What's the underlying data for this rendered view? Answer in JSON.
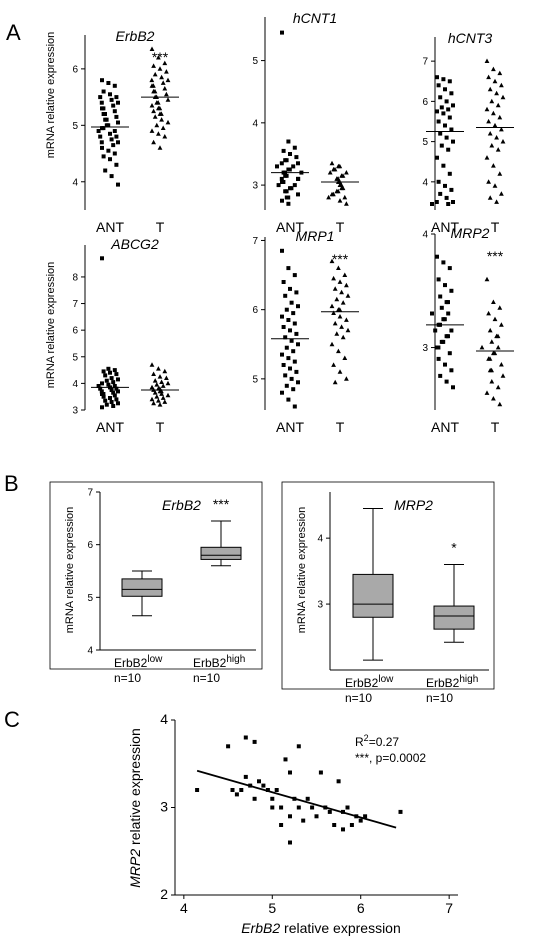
{
  "panel_letters": {
    "A": "A",
    "B": "B",
    "C": "C"
  },
  "labels": {
    "mrna_y": "mRNA relative expression",
    "c_ylabel_gene": "MRP2",
    "c_ylabel_rest": " relative expression",
    "c_xlabel_gene": "ErbB2",
    "c_xlabel_rest": " relative expression"
  },
  "chart_data": [
    {
      "type": "scatter",
      "panel": "A",
      "title": "ErbB2",
      "significance": "***",
      "categories": [
        "ANT",
        "T"
      ],
      "ylim": [
        3.5,
        6.6
      ],
      "yticks": [
        4,
        5,
        6
      ],
      "means": [
        4.97,
        5.5
      ],
      "groups": [
        {
          "category": "ANT",
          "marker": "square",
          "values": [
            5.8,
            5.75,
            5.7,
            5.6,
            5.55,
            5.5,
            5.5,
            5.45,
            5.4,
            5.4,
            5.35,
            5.3,
            5.3,
            5.25,
            5.2,
            5.2,
            5.15,
            5.1,
            5.1,
            5.05,
            5.0,
            5.0,
            4.95,
            4.95,
            4.9,
            4.9,
            4.85,
            4.8,
            4.8,
            4.75,
            4.7,
            4.7,
            4.65,
            4.6,
            4.55,
            4.5,
            4.45,
            4.4,
            4.3,
            4.2,
            4.1,
            3.95
          ]
        },
        {
          "category": "T",
          "marker": "triangle",
          "values": [
            6.35,
            6.2,
            6.1,
            6.05,
            6.0,
            5.95,
            5.9,
            5.85,
            5.8,
            5.8,
            5.75,
            5.7,
            5.7,
            5.65,
            5.6,
            5.6,
            5.55,
            5.5,
            5.5,
            5.45,
            5.4,
            5.4,
            5.35,
            5.3,
            5.3,
            5.25,
            5.2,
            5.2,
            5.15,
            5.1,
            5.05,
            5.0,
            4.95,
            4.9,
            4.85,
            4.8,
            4.7,
            4.6
          ]
        }
      ]
    },
    {
      "type": "scatter",
      "panel": "A",
      "title": "hCNT1",
      "significance": "",
      "categories": [
        "ANT",
        "T"
      ],
      "ylim": [
        2.6,
        5.7
      ],
      "yticks": [
        3,
        4,
        5
      ],
      "means": [
        3.2,
        3.05
      ],
      "groups": [
        {
          "category": "ANT",
          "marker": "square",
          "values": [
            5.45,
            3.7,
            3.6,
            3.55,
            3.5,
            3.45,
            3.4,
            3.4,
            3.35,
            3.35,
            3.3,
            3.3,
            3.25,
            3.25,
            3.2,
            3.2,
            3.2,
            3.15,
            3.15,
            3.1,
            3.1,
            3.1,
            3.05,
            3.05,
            3.0,
            3.0,
            2.95,
            2.95,
            2.9,
            2.9,
            2.85,
            2.8,
            2.8,
            2.75,
            2.7
          ]
        },
        {
          "category": "T",
          "marker": "triangle",
          "values": [
            3.35,
            3.3,
            3.3,
            3.25,
            3.25,
            3.2,
            3.2,
            3.15,
            3.15,
            3.1,
            3.1,
            3.1,
            3.05,
            3.05,
            3.05,
            3.0,
            3.0,
            3.0,
            2.95,
            2.95,
            2.9,
            2.9,
            2.85,
            2.85,
            2.8,
            2.8,
            2.75,
            2.7
          ]
        }
      ]
    },
    {
      "type": "scatter",
      "panel": "A",
      "title": "hCNT3",
      "significance": "",
      "categories": [
        "ANT",
        "T"
      ],
      "ylim": [
        3.3,
        7.6
      ],
      "yticks": [
        4,
        5,
        6,
        7
      ],
      "means": [
        5.25,
        5.35
      ],
      "groups": [
        {
          "category": "ANT",
          "marker": "square",
          "values": [
            6.6,
            6.55,
            6.5,
            6.4,
            6.3,
            6.2,
            6.1,
            6.0,
            5.9,
            5.85,
            5.8,
            5.75,
            5.7,
            5.6,
            5.5,
            5.4,
            5.3,
            5.2,
            5.1,
            5.0,
            4.9,
            4.8,
            4.6,
            4.4,
            4.2,
            4.0,
            3.9,
            3.8,
            3.7,
            3.6,
            3.5,
            3.5,
            3.45,
            3.45
          ]
        },
        {
          "category": "T",
          "marker": "triangle",
          "values": [
            7.0,
            6.8,
            6.7,
            6.6,
            6.5,
            6.4,
            6.3,
            6.2,
            6.1,
            6.0,
            5.9,
            5.8,
            5.7,
            5.6,
            5.5,
            5.4,
            5.3,
            5.2,
            5.1,
            5.0,
            4.9,
            4.8,
            4.6,
            4.4,
            4.2,
            4.0,
            3.9,
            3.7,
            3.6,
            3.5
          ]
        }
      ]
    },
    {
      "type": "scatter",
      "panel": "A",
      "title": "ABCG2",
      "significance": "",
      "categories": [
        "ANT",
        "T"
      ],
      "ylim": [
        3.0,
        9.2
      ],
      "yticks": [
        3,
        4,
        5,
        6,
        7,
        8
      ],
      "means": [
        3.85,
        3.75
      ],
      "groups": [
        {
          "category": "ANT",
          "marker": "square",
          "values": [
            8.7,
            4.55,
            4.5,
            4.45,
            4.4,
            4.35,
            4.3,
            4.2,
            4.15,
            4.1,
            4.05,
            4.0,
            3.95,
            3.9,
            3.9,
            3.85,
            3.8,
            3.8,
            3.75,
            3.7,
            3.7,
            3.65,
            3.6,
            3.6,
            3.55,
            3.5,
            3.45,
            3.4,
            3.35,
            3.3,
            3.25,
            3.2,
            3.15,
            3.1
          ]
        },
        {
          "category": "T",
          "marker": "triangle",
          "values": [
            4.7,
            4.55,
            4.45,
            4.35,
            4.25,
            4.2,
            4.1,
            4.05,
            4.0,
            3.95,
            3.9,
            3.85,
            3.8,
            3.8,
            3.75,
            3.7,
            3.7,
            3.65,
            3.6,
            3.55,
            3.5,
            3.45,
            3.4,
            3.35,
            3.3,
            3.25,
            3.2
          ]
        }
      ]
    },
    {
      "type": "scatter",
      "panel": "A",
      "title": "MRP1",
      "significance": "***",
      "categories": [
        "ANT",
        "T"
      ],
      "ylim": [
        4.55,
        7.05
      ],
      "yticks": [
        5,
        6,
        7
      ],
      "means": [
        5.58,
        5.97
      ],
      "groups": [
        {
          "category": "ANT",
          "marker": "square",
          "values": [
            6.85,
            6.6,
            6.5,
            6.4,
            6.3,
            6.25,
            6.2,
            6.1,
            6.05,
            6.0,
            5.95,
            5.9,
            5.85,
            5.8,
            5.75,
            5.7,
            5.65,
            5.6,
            5.55,
            5.5,
            5.45,
            5.4,
            5.35,
            5.3,
            5.25,
            5.2,
            5.15,
            5.1,
            5.05,
            5.0,
            4.95,
            4.9,
            4.85,
            4.8,
            4.7,
            4.6
          ]
        },
        {
          "category": "T",
          "marker": "triangle",
          "values": [
            6.7,
            6.6,
            6.5,
            6.45,
            6.4,
            6.35,
            6.3,
            6.25,
            6.2,
            6.15,
            6.1,
            6.05,
            6.0,
            6.0,
            5.95,
            5.9,
            5.85,
            5.8,
            5.75,
            5.7,
            5.65,
            5.6,
            5.5,
            5.4,
            5.3,
            5.2,
            5.1,
            5.0,
            4.95
          ]
        }
      ]
    },
    {
      "type": "scatter",
      "panel": "A",
      "title": "MRP2",
      "significance": "***",
      "categories": [
        "ANT",
        "T"
      ],
      "ylim": [
        2.45,
        4.0
      ],
      "yticks": [
        3,
        4
      ],
      "means": [
        3.2,
        2.97
      ],
      "groups": [
        {
          "category": "ANT",
          "marker": "square",
          "values": [
            3.8,
            3.75,
            3.7,
            3.6,
            3.55,
            3.5,
            3.45,
            3.4,
            3.4,
            3.35,
            3.3,
            3.3,
            3.25,
            3.25,
            3.2,
            3.2,
            3.15,
            3.15,
            3.1,
            3.1,
            3.05,
            3.05,
            3.0,
            3.0,
            2.95,
            2.9,
            2.85,
            2.8,
            2.75,
            2.7,
            2.65
          ]
        },
        {
          "category": "T",
          "marker": "triangle",
          "values": [
            3.6,
            3.4,
            3.35,
            3.3,
            3.25,
            3.2,
            3.15,
            3.1,
            3.1,
            3.05,
            3.0,
            3.0,
            2.95,
            2.95,
            2.9,
            2.9,
            2.85,
            2.8,
            2.8,
            2.75,
            2.7,
            2.65,
            2.6,
            2.55,
            2.5
          ]
        }
      ]
    },
    {
      "type": "box",
      "panel": "B",
      "title": "ErbB2",
      "significance": "***",
      "ylim": [
        4,
        7
      ],
      "yticks": [
        4,
        5,
        6,
        7
      ],
      "boxes": [
        {
          "label": "ErbB2",
          "sup": "low",
          "n": "n=10",
          "min": 4.65,
          "q1": 5.02,
          "median": 5.15,
          "q3": 5.35,
          "max": 5.5
        },
        {
          "label": "ErbB2",
          "sup": "high",
          "n": "n=10",
          "min": 5.6,
          "q1": 5.72,
          "median": 5.8,
          "q3": 5.95,
          "max": 6.45
        }
      ]
    },
    {
      "type": "box",
      "panel": "B",
      "title": "MRP2",
      "significance": "*",
      "ylim": [
        2,
        4.7
      ],
      "yticks": [
        3,
        4
      ],
      "boxes": [
        {
          "label": "ErbB2",
          "sup": "low",
          "n": "n=10",
          "min": 2.15,
          "q1": 2.8,
          "median": 3.0,
          "q3": 3.45,
          "max": 4.45
        },
        {
          "label": "ErbB2",
          "sup": "high",
          "n": "n=10",
          "min": 2.42,
          "q1": 2.62,
          "median": 2.82,
          "q3": 2.97,
          "max": 3.6
        }
      ]
    },
    {
      "type": "scatter",
      "panel": "C",
      "xlim": [
        3.9,
        7.1
      ],
      "ylim": [
        2,
        4
      ],
      "xticks": [
        4,
        5,
        6,
        7
      ],
      "yticks": [
        2,
        3,
        4
      ],
      "annotation_r2_base": "R",
      "annotation_r2_sup": "2",
      "annotation_r2_val": "=0.27",
      "annotation_p": "***, p=0.0002",
      "regression": {
        "x": [
          4.15,
          6.4
        ],
        "y": [
          3.42,
          2.77
        ]
      },
      "points": [
        [
          4.15,
          3.2
        ],
        [
          4.5,
          3.7
        ],
        [
          4.55,
          3.2
        ],
        [
          4.6,
          3.15
        ],
        [
          4.65,
          3.2
        ],
        [
          4.7,
          3.8
        ],
        [
          4.75,
          3.25
        ],
        [
          4.7,
          3.35
        ],
        [
          4.8,
          3.75
        ],
        [
          4.8,
          3.1
        ],
        [
          4.85,
          3.3
        ],
        [
          4.9,
          3.25
        ],
        [
          4.95,
          3.2
        ],
        [
          5.0,
          3.1
        ],
        [
          5.0,
          3.0
        ],
        [
          5.05,
          3.2
        ],
        [
          5.1,
          3.0
        ],
        [
          5.1,
          2.8
        ],
        [
          5.15,
          3.55
        ],
        [
          5.2,
          3.4
        ],
        [
          5.2,
          2.9
        ],
        [
          5.2,
          2.6
        ],
        [
          5.25,
          3.1
        ],
        [
          5.3,
          3.7
        ],
        [
          5.3,
          3.0
        ],
        [
          5.35,
          2.85
        ],
        [
          5.4,
          3.1
        ],
        [
          5.45,
          3.0
        ],
        [
          5.5,
          2.9
        ],
        [
          5.55,
          3.4
        ],
        [
          5.6,
          3.0
        ],
        [
          5.65,
          2.95
        ],
        [
          5.7,
          2.8
        ],
        [
          5.75,
          3.3
        ],
        [
          5.8,
          2.95
        ],
        [
          5.8,
          2.75
        ],
        [
          5.85,
          3.0
        ],
        [
          5.9,
          2.8
        ],
        [
          5.95,
          2.9
        ],
        [
          6.0,
          2.85
        ],
        [
          6.05,
          2.9
        ],
        [
          6.45,
          2.95
        ]
      ]
    }
  ]
}
